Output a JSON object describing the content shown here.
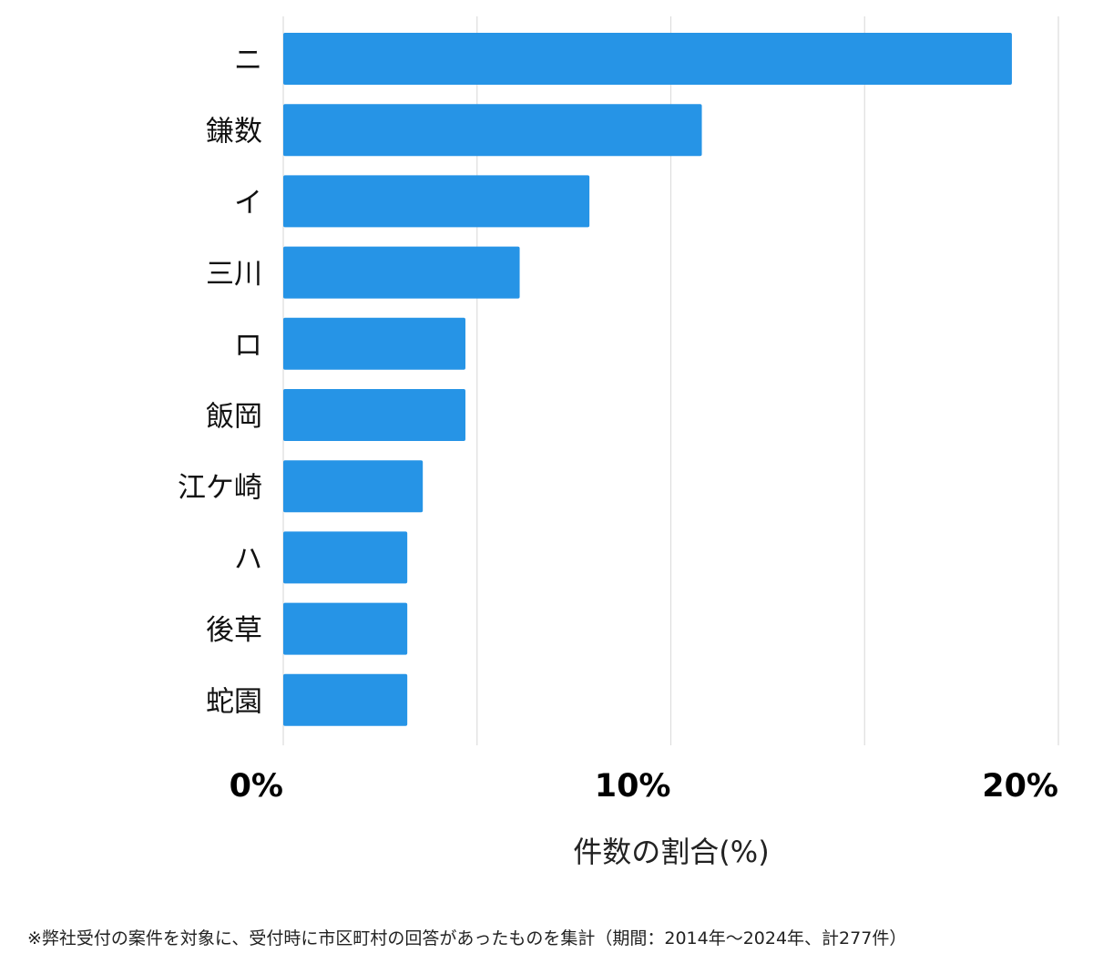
{
  "chart_data": {
    "type": "bar",
    "orientation": "horizontal",
    "categories": [
      "ニ",
      "鎌数",
      "イ",
      "三川",
      "ロ",
      "飯岡",
      "江ケ崎",
      "ハ",
      "後草",
      "蛇園"
    ],
    "values": [
      18.8,
      10.8,
      7.9,
      6.1,
      4.7,
      4.7,
      3.6,
      3.2,
      3.2,
      3.2
    ],
    "xlabel": "件数の割合(%)",
    "ylabel": "",
    "xlim": [
      0,
      20
    ],
    "xticks": [
      0,
      10,
      20
    ],
    "xtick_labels": [
      "0%",
      "10%",
      "20%"
    ],
    "grid_step": 5,
    "grid": true,
    "bar_color": "#2694e6",
    "grid_color": "#dddddd"
  },
  "footnote": "※弊社受付の案件を対象に、受付時に市区町村の回答があったものを集計（期間：2014年〜2024年、計277件）"
}
